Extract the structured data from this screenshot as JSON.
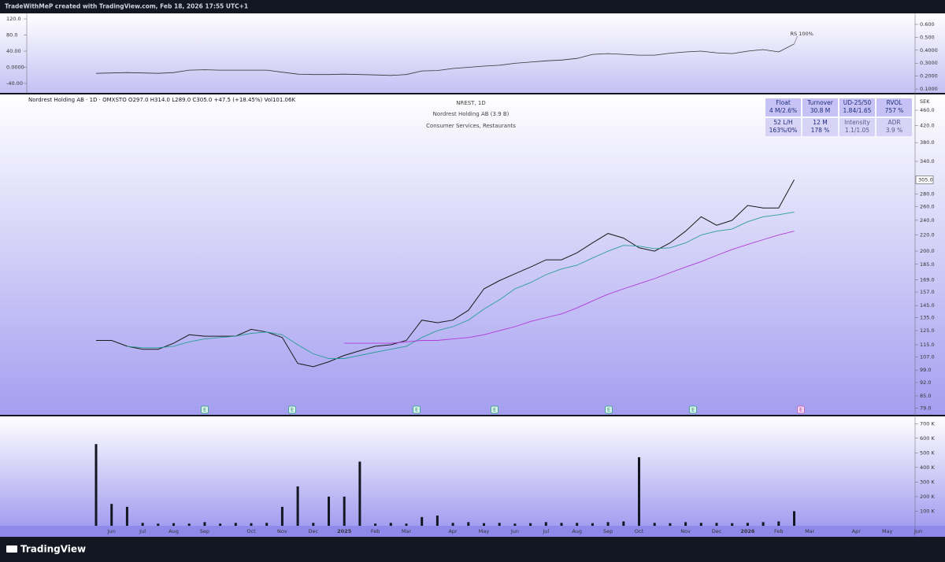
{
  "header": {
    "credit": "TradeWithMeP created with TradingView.com, Feb 18, 2026 17:55 UTC+1",
    "legend": "Nordrest Holding AB · 1D · OMXSTO  O297.0  H314.0  L289.0  C305.0  +47.5 (+18.45%)  Vol101.06K",
    "symbol": "NREST, 1D",
    "company": "Nordrest Holding AB (3.9 B)",
    "sector": "Consumer Services, Restaurants",
    "currency": "SEK"
  },
  "info_table": {
    "rows": [
      [
        [
          "Float",
          "4 M/2.6%"
        ],
        [
          "Turnover",
          "30.8 M"
        ],
        [
          "UD-25/50",
          "1.84/1.65"
        ],
        [
          "RVOL",
          "757 %"
        ]
      ],
      [
        [
          "52 L/H",
          "163%/0%"
        ],
        [
          "12 M",
          "178 %"
        ],
        [
          "Intensity",
          "1.1/1.05"
        ],
        [
          "ADR",
          "3.9 %"
        ]
      ]
    ]
  },
  "events": [
    "E",
    "E",
    "E",
    "E",
    "E",
    "E",
    "E"
  ],
  "footer": {
    "brand": "TradingView"
  },
  "chart_data": [
    {
      "type": "line",
      "annotation": "RS 100%",
      "ylim": [
        -63.4,
        133.7
      ],
      "yticks": [
        {
          "value": 120,
          "label": "120.0"
        },
        {
          "value": 80,
          "label": "80.0"
        },
        {
          "value": 40,
          "label": "40.00"
        },
        {
          "value": 0,
          "label": "0.0000"
        },
        {
          "value": -40,
          "label": "-40.00"
        }
      ],
      "y2lim": [
        0.07,
        0.685
      ],
      "y2ticks": [
        {
          "value": 0.6,
          "label": "0.600"
        },
        {
          "value": 0.5,
          "label": "0.500"
        },
        {
          "value": 0.4,
          "label": "0.4000"
        },
        {
          "value": 0.3,
          "label": "0.3000"
        },
        {
          "value": 0.2,
          "label": "0.2000"
        },
        {
          "value": 0.1,
          "label": "0.1000"
        }
      ],
      "series": [
        {
          "color": "#333333",
          "values": [
            -15,
            -14,
            -13,
            -14,
            -15,
            -13,
            -7,
            -6,
            -7,
            -7,
            -7,
            -7,
            -12,
            -17,
            -18,
            -18,
            -17,
            -18,
            -19,
            -20,
            -18,
            -9,
            -8,
            -3,
            0,
            3,
            5,
            10,
            13,
            16,
            18,
            22,
            32,
            34,
            32,
            30,
            30,
            35,
            38,
            40,
            36,
            34,
            40,
            44,
            38,
            58,
            null,
            null,
            null,
            null,
            null,
            null,
            null,
            null
          ]
        }
      ]
    },
    {
      "type": "line",
      "log_scale": true,
      "last_price_label": "305.0",
      "ylim": [
        76,
        505
      ],
      "yticks": [
        {
          "value": 79,
          "label": "79.0"
        },
        {
          "value": 85,
          "label": "85.0"
        },
        {
          "value": 92,
          "label": "92.0"
        },
        {
          "value": 99,
          "label": "99.0"
        },
        {
          "value": 107,
          "label": "107.0"
        },
        {
          "value": 115,
          "label": "115.0"
        },
        {
          "value": 125,
          "label": "125.0"
        },
        {
          "value": 135,
          "label": "135.0"
        },
        {
          "value": 145,
          "label": "145.0"
        },
        {
          "value": 157,
          "label": "157.0"
        },
        {
          "value": 169,
          "label": "169.0"
        },
        {
          "value": 185,
          "label": "185.0"
        },
        {
          "value": 200,
          "label": "200.0"
        },
        {
          "value": 220,
          "label": "220.0"
        },
        {
          "value": 240,
          "label": "240.0"
        },
        {
          "value": 260,
          "label": "260.0"
        },
        {
          "value": 280,
          "label": "280.0"
        },
        {
          "value": 340,
          "label": "340.0"
        },
        {
          "value": 380,
          "label": "380.0"
        },
        {
          "value": 420,
          "label": "420.0"
        },
        {
          "value": 460,
          "label": "460.0"
        }
      ],
      "series": [
        {
          "color": "#1a1a1a",
          "values": [
            118,
            118,
            114,
            112,
            112,
            116,
            122,
            121,
            121,
            121,
            126,
            124,
            120,
            103,
            101,
            104,
            108,
            111,
            114,
            115,
            118,
            133,
            131,
            133,
            141,
            160,
            168,
            175,
            182,
            190,
            190,
            198,
            210,
            222,
            216,
            204,
            200,
            210,
            225,
            245,
            233,
            240,
            262,
            258,
            258,
            305,
            null,
            null,
            null,
            null,
            null,
            null,
            null,
            null
          ]
        },
        {
          "color": "#2a9d9a",
          "values": [
            null,
            null,
            114,
            113,
            113,
            114,
            117,
            119,
            120,
            121,
            123,
            124,
            122,
            115,
            109,
            106,
            106,
            108,
            110,
            112,
            114,
            120,
            125,
            128,
            133,
            142,
            150,
            160,
            166,
            174,
            180,
            184,
            192,
            200,
            207,
            206,
            203,
            204,
            210,
            220,
            225,
            228,
            238,
            245,
            248,
            252,
            null,
            null,
            null,
            null,
            null,
            null,
            null,
            null
          ]
        },
        {
          "color": "#b03ad8",
          "values": [
            null,
            null,
            null,
            null,
            null,
            null,
            null,
            null,
            null,
            null,
            null,
            null,
            null,
            null,
            null,
            null,
            116,
            116,
            116,
            116,
            117,
            118,
            118,
            119,
            120,
            122,
            125,
            128,
            132,
            135,
            138,
            143,
            149,
            155,
            160,
            165,
            170,
            176,
            182,
            188,
            195,
            202,
            208,
            214,
            220,
            225,
            null,
            null,
            null,
            null,
            null,
            null,
            null,
            null
          ]
        }
      ]
    },
    {
      "type": "bar",
      "categories": [
        null,
        "Jun",
        null,
        "Jul",
        null,
        "Aug",
        null,
        "Sep",
        null,
        null,
        "Oct",
        null,
        "Nov",
        null,
        "Dec",
        null,
        "2025",
        null,
        "Feb",
        null,
        "Mar",
        null,
        null,
        "Apr",
        null,
        "May",
        null,
        "Jun",
        null,
        "Jul",
        null,
        "Aug",
        null,
        "Sep",
        null,
        "Oct",
        null,
        null,
        "Nov",
        null,
        "Dec",
        null,
        "2026",
        null,
        "Feb",
        null,
        "Mar",
        null,
        null,
        "Apr",
        null,
        "May",
        null,
        "Jun"
      ],
      "values": [
        560,
        150,
        130,
        20,
        15,
        18,
        15,
        25,
        15,
        20,
        18,
        20,
        130,
        270,
        20,
        200,
        200,
        440,
        15,
        20,
        15,
        60,
        70,
        20,
        25,
        18,
        20,
        15,
        18,
        25,
        20,
        20,
        18,
        25,
        30,
        470,
        20,
        18,
        25,
        20,
        20,
        18,
        20,
        25,
        30,
        100,
        null,
        null,
        null,
        null,
        null,
        null,
        null,
        null
      ],
      "color": "#131722",
      "ylim": [
        0,
        750
      ],
      "yticks": [
        {
          "value": 100,
          "label": "100 K"
        },
        {
          "value": 200,
          "label": "200 K"
        },
        {
          "value": 300,
          "label": "300 K"
        },
        {
          "value": 400,
          "label": "400 K"
        },
        {
          "value": 500,
          "label": "500 K"
        },
        {
          "value": 600,
          "label": "600 K"
        },
        {
          "value": 700,
          "label": "700 K"
        }
      ]
    }
  ]
}
